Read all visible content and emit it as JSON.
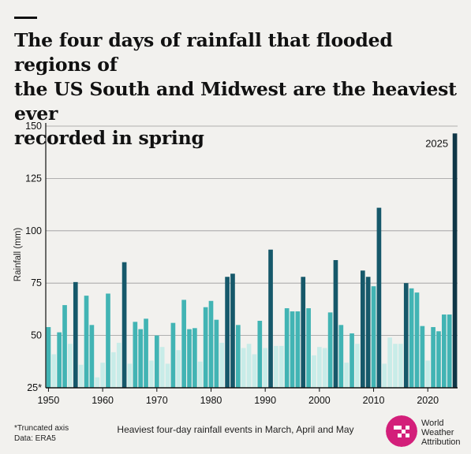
{
  "title_lines": [
    "The four days of rainfall that flooded regions of",
    "the US South and Midwest are the heaviest ever",
    "recorded in spring"
  ],
  "footnote": "*Truncated axis",
  "source": "Data: ERA5",
  "logo_text_lines": [
    "World",
    "Weather",
    "Attribution"
  ],
  "colors": {
    "background": "#f2f1ee",
    "low": "#c8ece8",
    "mid": "#42b4b4",
    "high": "#16586a",
    "top": "#0f3646",
    "logo": "#d31f7a"
  },
  "chart_data": {
    "type": "bar",
    "xlabel": "Heaviest four-day rainfall events in March, April and May",
    "ylabel": "Rainfall (mm)",
    "ylim": [
      25,
      150
    ],
    "yticks": [
      25,
      50,
      75,
      100,
      125,
      150
    ],
    "ytick_labels": [
      "25*",
      "50",
      "75",
      "100",
      "125",
      "150"
    ],
    "xticks": [
      1950,
      1960,
      1970,
      1980,
      1990,
      2000,
      2010,
      2020
    ],
    "grid": "horizontal",
    "annotation": {
      "year": 2025,
      "label": "2025"
    },
    "years": [
      1950,
      1951,
      1952,
      1953,
      1954,
      1955,
      1956,
      1957,
      1958,
      1959,
      1960,
      1961,
      1962,
      1963,
      1964,
      1965,
      1966,
      1967,
      1968,
      1969,
      1970,
      1971,
      1972,
      1973,
      1974,
      1975,
      1976,
      1977,
      1978,
      1979,
      1980,
      1981,
      1982,
      1983,
      1984,
      1985,
      1986,
      1987,
      1988,
      1989,
      1990,
      1991,
      1992,
      1993,
      1994,
      1995,
      1996,
      1997,
      1998,
      1999,
      2000,
      2001,
      2002,
      2003,
      2004,
      2005,
      2006,
      2007,
      2008,
      2009,
      2010,
      2011,
      2012,
      2013,
      2014,
      2015,
      2016,
      2017,
      2018,
      2019,
      2020,
      2021,
      2022,
      2023,
      2024,
      2025
    ],
    "values": [
      54,
      41,
      51.5,
      64.5,
      46,
      75.5,
      36,
      69,
      55,
      30,
      37,
      70,
      42,
      46.5,
      85,
      36.5,
      56.5,
      53,
      58,
      38,
      50,
      44.5,
      36.5,
      56,
      43,
      67,
      53,
      53.5,
      37.5,
      63.5,
      66.5,
      57.5,
      46.5,
      78,
      79.5,
      55,
      44,
      46,
      41,
      57,
      44,
      91,
      45,
      45,
      63,
      61.5,
      61.5,
      78,
      63,
      40.5,
      44.5,
      44,
      61,
      86,
      55,
      37,
      51,
      46,
      81,
      78,
      73.5,
      111,
      36.5,
      49,
      46,
      46,
      75,
      72.5,
      70.5,
      54.5,
      38,
      54,
      52,
      60,
      60,
      146.5
    ]
  }
}
